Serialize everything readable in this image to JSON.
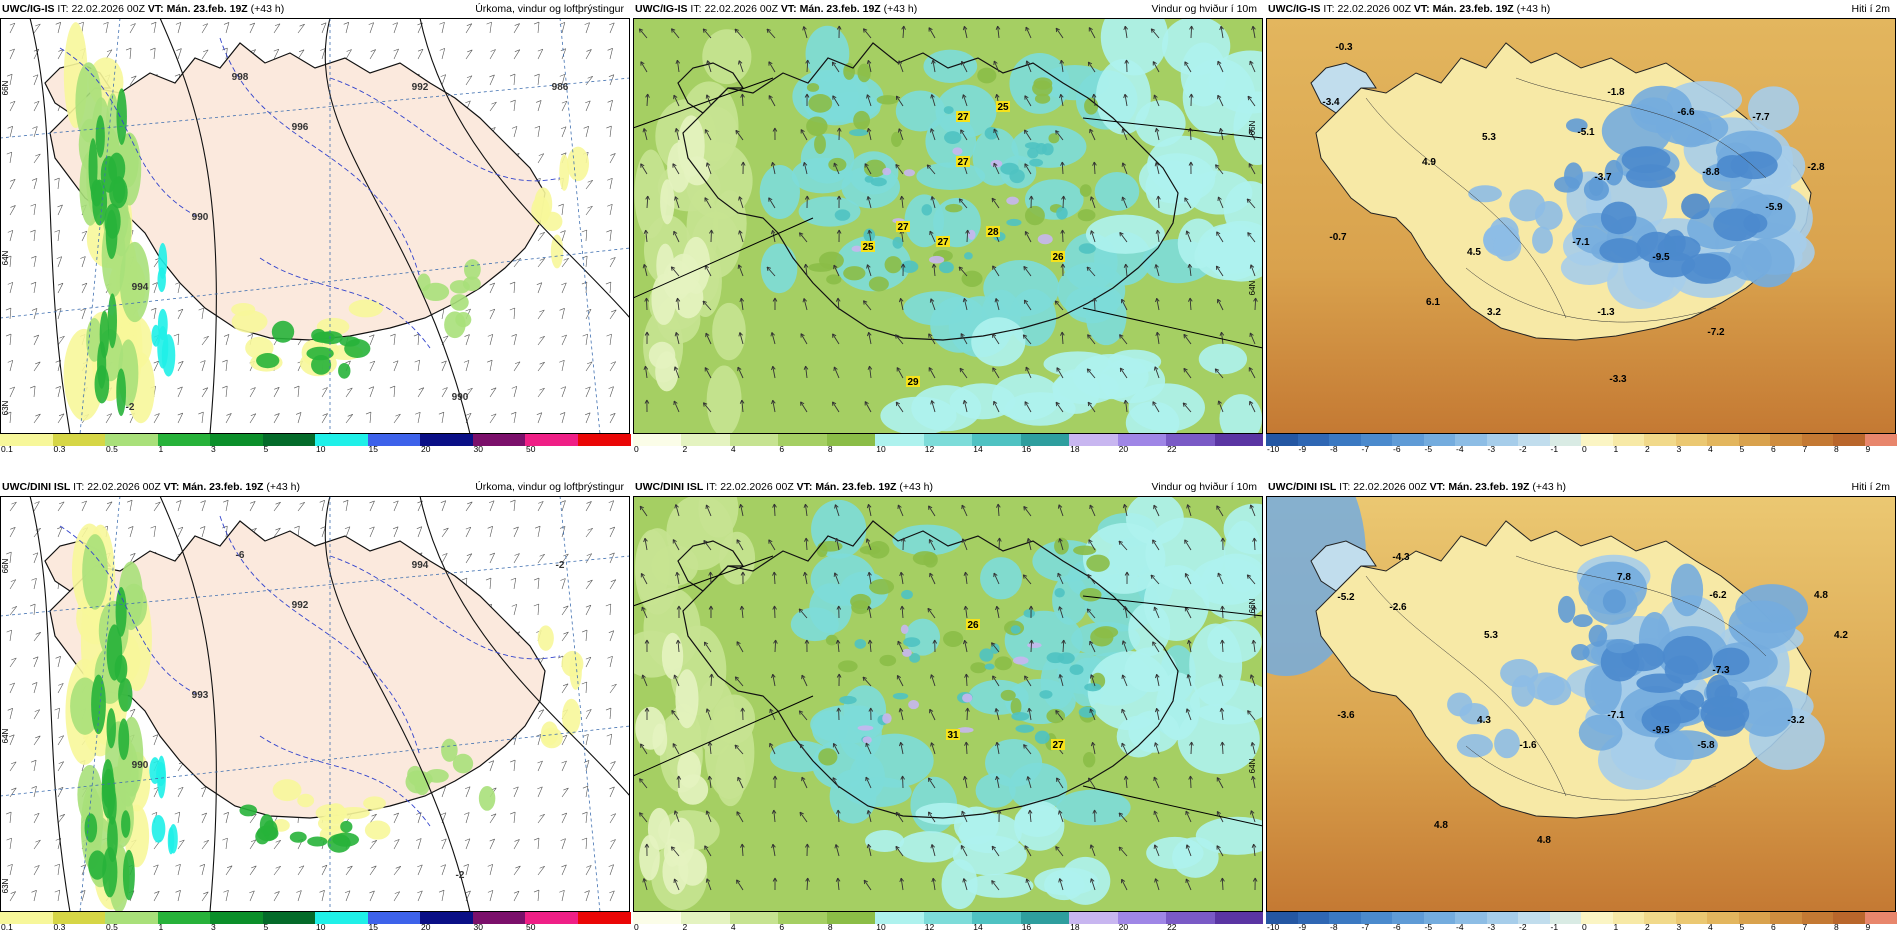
{
  "rows": [
    {
      "model": "UWC/IG-IS",
      "panels": [
        {
          "kind": "precip",
          "header": {
            "model": "UWC/IG-IS",
            "it_label": "IT:",
            "it_value": "22.02.2026 00Z",
            "vt_label": "VT:",
            "vt_value": "Mán. 23.feb. 19Z",
            "lead": "(+43 h)",
            "title": "Úrkoma, vindur og loftþrýstingur"
          },
          "colorbar": {
            "ticks": [
              "0.1",
              "0.3",
              "0.5",
              "1",
              "3",
              "5",
              "10",
              "15",
              "20",
              "30",
              "50"
            ],
            "colors": [
              "#f7f79a",
              "#d6d646",
              "#a9e07a",
              "#27b23a",
              "#0b8f2a",
              "#046b2a",
              "#1ff0e8",
              "#3d62ea",
              "#0a0f86",
              "#7b106b",
              "#ef1f86",
              "#ea0606"
            ]
          },
          "contour_labels": [
            "996",
            "992",
            "990",
            "994",
            "998",
            "986",
            "990",
            "-2"
          ],
          "lat_labels": [
            "66N",
            "64N",
            "63N"
          ]
        },
        {
          "kind": "wind",
          "header": {
            "model": "UWC/IG-IS",
            "it_label": "IT:",
            "it_value": "22.02.2026 00Z",
            "vt_label": "VT:",
            "vt_value": "Mán. 23.feb. 19Z",
            "lead": "(+43 h)",
            "title": "Vindur og hviður í 10m"
          },
          "colorbar": {
            "ticks": [
              "0",
              "2",
              "4",
              "6",
              "8",
              "10",
              "12",
              "14",
              "16",
              "18",
              "20",
              "22"
            ],
            "colors": [
              "#fbfde8",
              "#e4f3c0",
              "#c6e391",
              "#a5cf63",
              "#8bbd47",
              "#aef2ee",
              "#7ddcd9",
              "#4fc2c2",
              "#2e9e9e",
              "#c8b6f0",
              "#9f86e6",
              "#7a5ac6",
              "#5a35a3"
            ]
          },
          "gust_labels": [
            "27",
            "25",
            "27",
            "27",
            "27",
            "28",
            "25",
            "26",
            "29"
          ],
          "lat_labels": [
            "66N",
            "64N"
          ]
        },
        {
          "kind": "temp",
          "header": {
            "model": "UWC/IG-IS",
            "it_label": "IT:",
            "it_value": "22.02.2026 00Z",
            "vt_label": "VT:",
            "vt_value": "Mán. 23.feb. 19Z",
            "lead": "(+43 h)",
            "title": "Hiti í 2m"
          },
          "colorbar": {
            "ticks": [
              "-10",
              "-9",
              "-8",
              "-7",
              "-6",
              "-5",
              "-4",
              "-3",
              "-2",
              "-1",
              "0",
              "1",
              "2",
              "3",
              "4",
              "5",
              "6",
              "7",
              "8",
              "9"
            ],
            "colors": [
              "#2457a3",
              "#2f67b4",
              "#3b79c2",
              "#4b8acd",
              "#5f9bd6",
              "#74acde",
              "#8dbde5",
              "#a6cdea",
              "#c1dded",
              "#d9ebe4",
              "#fbf5c4",
              "#f7e9a6",
              "#f1d98a",
              "#ebc872",
              "#e3b65e",
              "#d9a24d",
              "#cf8d3f",
              "#c47933",
              "#b9662b",
              "#e8866c"
            ]
          },
          "temp_labels": [
            "-0.3",
            "-3.4",
            "-1.8",
            "-6.6",
            "-7.7",
            "5.3",
            "-5.1",
            "4.9",
            "-8.8",
            "-2.8",
            "-3.7",
            "-5.9",
            "-0.7",
            "4.5",
            "-7.1",
            "-9.5",
            "6.1",
            "3.2",
            "-1.3",
            "-7.2",
            "-3.3"
          ]
        }
      ]
    },
    {
      "model": "UWC/DINI ISL",
      "panels": [
        {
          "kind": "precip",
          "header": {
            "model": "UWC/DINI ISL",
            "it_label": "IT:",
            "it_value": "22.02.2026 00Z",
            "vt_label": "VT:",
            "vt_value": "Mán. 23.feb. 19Z",
            "lead": "(+43 h)",
            "title": "Úrkoma, vindur og loftþrýstingur"
          },
          "colorbar": {
            "ticks": [
              "0.1",
              "0.3",
              "0.5",
              "1",
              "3",
              "5",
              "10",
              "15",
              "20",
              "30",
              "50"
            ],
            "colors": [
              "#f7f79a",
              "#d6d646",
              "#a9e07a",
              "#27b23a",
              "#0b8f2a",
              "#046b2a",
              "#1ff0e8",
              "#3d62ea",
              "#0a0f86",
              "#7b106b",
              "#ef1f86",
              "#ea0606"
            ]
          },
          "contour_labels": [
            "992",
            "994",
            "993",
            "990",
            "-6",
            "-2",
            "-2"
          ],
          "lat_labels": [
            "66N",
            "64N",
            "63N"
          ]
        },
        {
          "kind": "wind",
          "header": {
            "model": "UWC/DINI ISL",
            "it_label": "IT:",
            "it_value": "22.02.2026 00Z",
            "vt_label": "VT:",
            "vt_value": "Mán. 23.feb. 19Z",
            "lead": "(+43 h)",
            "title": "Vindur og hviður í 10m"
          },
          "colorbar": {
            "ticks": [
              "0",
              "2",
              "4",
              "6",
              "8",
              "10",
              "12",
              "14",
              "16",
              "18",
              "20",
              "22"
            ],
            "colors": [
              "#fbfde8",
              "#e4f3c0",
              "#c6e391",
              "#a5cf63",
              "#8bbd47",
              "#aef2ee",
              "#7ddcd9",
              "#4fc2c2",
              "#2e9e9e",
              "#c8b6f0",
              "#9f86e6",
              "#7a5ac6",
              "#5a35a3"
            ]
          },
          "gust_labels": [
            "26",
            "31",
            "27"
          ],
          "lat_labels": [
            "66N",
            "64N"
          ]
        },
        {
          "kind": "temp",
          "header": {
            "model": "UWC/DINI ISL",
            "it_label": "IT:",
            "it_value": "22.02.2026 00Z",
            "vt_label": "VT:",
            "vt_value": "Mán. 23.feb. 19Z",
            "lead": "(+43 h)",
            "title": "Hiti í 2m"
          },
          "colorbar": {
            "ticks": [
              "-10",
              "-9",
              "-8",
              "-7",
              "-6",
              "-5",
              "-4",
              "-3",
              "-2",
              "-1",
              "0",
              "1",
              "2",
              "3",
              "4",
              "5",
              "6",
              "7",
              "8",
              "9"
            ],
            "colors": [
              "#2457a3",
              "#2f67b4",
              "#3b79c2",
              "#4b8acd",
              "#5f9bd6",
              "#74acde",
              "#8dbde5",
              "#a6cdea",
              "#c1dded",
              "#d9ebe4",
              "#fbf5c4",
              "#f7e9a6",
              "#f1d98a",
              "#ebc872",
              "#e3b65e",
              "#d9a24d",
              "#cf8d3f",
              "#c47933",
              "#b9662b",
              "#e8866c"
            ]
          },
          "temp_labels": [
            "-4.3",
            "-5.2",
            "-2.6",
            "7.8",
            "-6.2",
            "4.8",
            "5.3",
            "4.2",
            "-7.3",
            "-3.6",
            "4.3",
            "-7.1",
            "-3.2",
            "-9.5",
            "-1.6",
            "-5.8",
            "4.8",
            "4.8"
          ]
        }
      ]
    }
  ]
}
